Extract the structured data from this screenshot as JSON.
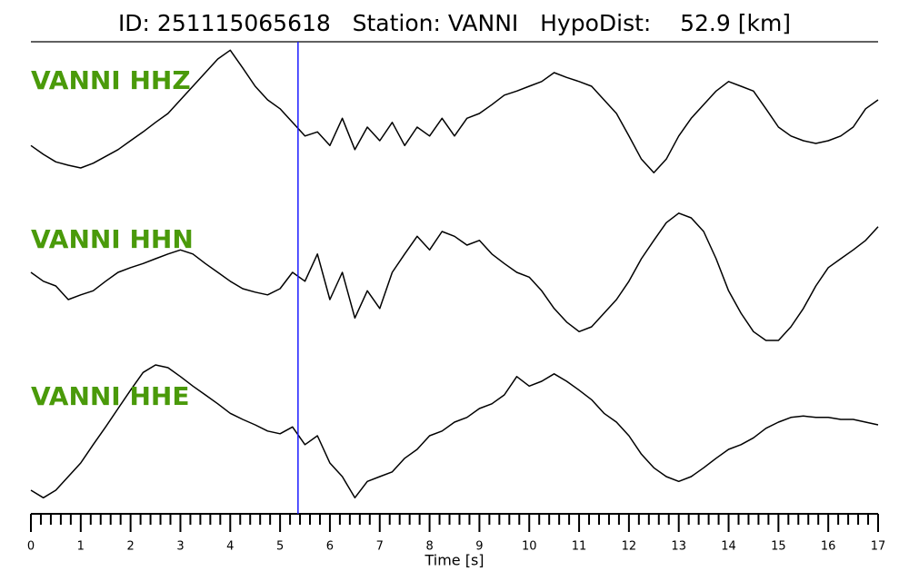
{
  "chart_data": {
    "type": "line",
    "title": "ID: 251115065618   Station: VANNI   HypoDist:    52.9 [km]",
    "xlabel": "Time [s]",
    "xlim": [
      0,
      17
    ],
    "xticks": [
      0,
      1,
      2,
      3,
      4,
      5,
      6,
      7,
      8,
      9,
      10,
      11,
      12,
      13,
      14,
      15,
      16,
      17
    ],
    "xminorticks": [
      0.2,
      0.4,
      0.6,
      0.8,
      1.2,
      1.4,
      1.6,
      1.8,
      2.2,
      2.4,
      2.6,
      2.8,
      3.2,
      3.4,
      3.6,
      3.8,
      4.2,
      4.4,
      4.6,
      4.8,
      5.2,
      5.4,
      5.6,
      5.8,
      6.2,
      6.4,
      6.6,
      6.8,
      7.2,
      7.4,
      7.6,
      7.8,
      8.2,
      8.4,
      8.6,
      8.8,
      9.2,
      9.4,
      9.6,
      9.8,
      10.2,
      10.4,
      10.6,
      10.8,
      11.2,
      11.4,
      11.6,
      11.8,
      12.2,
      12.4,
      12.6,
      12.8,
      13.2,
      13.4,
      13.6,
      13.8,
      14.2,
      14.4,
      14.6,
      14.8,
      15.2,
      15.4,
      15.6,
      15.8,
      16.2,
      16.4,
      16.6,
      16.8
    ],
    "label_color": "#4a9a0a",
    "marker": {
      "x": 5.36,
      "color": "#1a1aff"
    },
    "x": [
      0,
      0.25,
      0.5,
      0.75,
      1,
      1.25,
      1.5,
      1.75,
      2,
      2.25,
      2.5,
      2.75,
      3,
      3.25,
      3.5,
      3.75,
      4,
      4.25,
      4.5,
      4.75,
      5,
      5.25,
      5.5,
      5.75,
      6,
      6.25,
      6.5,
      6.75,
      7,
      7.25,
      7.5,
      7.75,
      8,
      8.25,
      8.5,
      8.75,
      9,
      9.25,
      9.5,
      9.75,
      10,
      10.25,
      10.5,
      10.75,
      11,
      11.25,
      11.5,
      11.75,
      12,
      12.25,
      12.5,
      12.75,
      13,
      13.25,
      13.5,
      13.75,
      14,
      14.25,
      14.5,
      14.75,
      15,
      15.25,
      15.5,
      15.75,
      16,
      16.25,
      16.5,
      16.75,
      17
    ],
    "series": [
      {
        "name": "VANNI HHZ",
        "color": "#000000",
        "values": [
          -0.47,
          -0.6,
          -0.71,
          -0.76,
          -0.8,
          -0.73,
          -0.63,
          -0.53,
          -0.4,
          -0.27,
          -0.13,
          0,
          0.2,
          0.4,
          0.6,
          0.8,
          0.93,
          0.67,
          0.4,
          0.2,
          0.07,
          -0.13,
          -0.33,
          -0.27,
          -0.47,
          -0.07,
          -0.53,
          -0.2,
          -0.4,
          -0.13,
          -0.47,
          -0.2,
          -0.33,
          -0.07,
          -0.33,
          -0.07,
          0,
          0.13,
          0.27,
          0.33,
          0.4,
          0.47,
          0.6,
          0.53,
          0.47,
          0.4,
          0.2,
          0,
          -0.33,
          -0.67,
          -0.87,
          -0.67,
          -0.33,
          -0.07,
          0.13,
          0.33,
          0.47,
          0.4,
          0.33,
          0.07,
          -0.2,
          -0.33,
          -0.4,
          -0.44,
          -0.4,
          -0.33,
          -0.2,
          0.07,
          0.2
        ]
      },
      {
        "name": "VANNI HHN",
        "color": "#000000",
        "values": [
          0,
          -0.13,
          -0.2,
          -0.4,
          -0.33,
          -0.27,
          -0.13,
          0,
          0.07,
          0.13,
          0.2,
          0.27,
          0.33,
          0.27,
          0.13,
          0,
          -0.13,
          -0.24,
          -0.29,
          -0.33,
          -0.24,
          0,
          -0.13,
          0.27,
          -0.4,
          0,
          -0.67,
          -0.27,
          -0.53,
          0,
          0.27,
          0.53,
          0.33,
          0.6,
          0.53,
          0.4,
          0.47,
          0.27,
          0.13,
          0,
          -0.07,
          -0.27,
          -0.53,
          -0.73,
          -0.87,
          -0.8,
          -0.6,
          -0.4,
          -0.13,
          0.2,
          0.47,
          0.73,
          0.87,
          0.8,
          0.6,
          0.2,
          -0.27,
          -0.6,
          -0.87,
          -1,
          -1,
          -0.8,
          -0.53,
          -0.2,
          0.07,
          0.2,
          0.33,
          0.47,
          0.67
        ]
      },
      {
        "name": "VANNI HHE",
        "color": "#000000",
        "values": [
          -0.8,
          -0.91,
          -0.8,
          -0.6,
          -0.4,
          -0.13,
          0.13,
          0.4,
          0.67,
          0.93,
          1.04,
          1,
          0.87,
          0.73,
          0.6,
          0.47,
          0.33,
          0.24,
          0.16,
          0.07,
          0.03,
          0.13,
          -0.13,
          0,
          -0.4,
          -0.6,
          -0.91,
          -0.67,
          -0.6,
          -0.53,
          -0.33,
          -0.2,
          0,
          0.07,
          0.2,
          0.27,
          0.4,
          0.47,
          0.6,
          0.87,
          0.73,
          0.8,
          0.91,
          0.8,
          0.67,
          0.53,
          0.33,
          0.2,
          0,
          -0.27,
          -0.47,
          -0.6,
          -0.67,
          -0.6,
          -0.47,
          -0.33,
          -0.2,
          -0.13,
          -0.03,
          0.11,
          0.2,
          0.27,
          0.29,
          0.27,
          0.27,
          0.24,
          0.24,
          0.2,
          0.16
        ]
      }
    ]
  }
}
